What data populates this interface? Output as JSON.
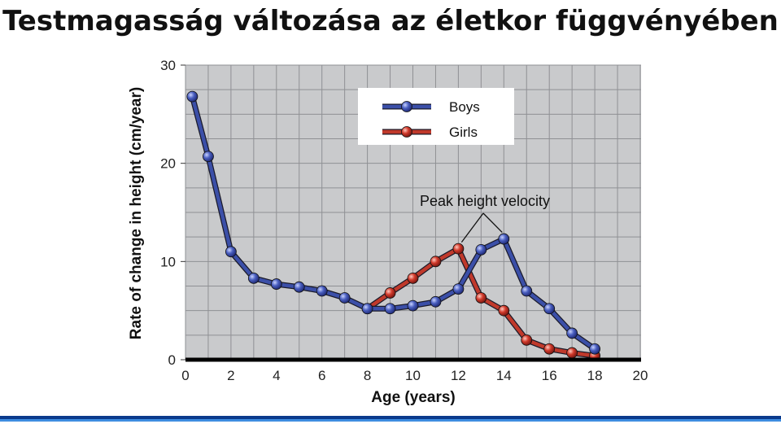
{
  "slide": {
    "title": "Testmagasság változása az életkor függvényében"
  },
  "chart_data": {
    "type": "line",
    "xlabel": "Age (years)",
    "ylabel": "Rate of change in height (cm/year)",
    "xlim": [
      0,
      20
    ],
    "ylim": [
      0,
      30
    ],
    "x_ticks": [
      "0",
      "2",
      "4",
      "6",
      "8",
      "10",
      "12",
      "14",
      "16",
      "18",
      "20"
    ],
    "y_ticks": [
      "0",
      "10",
      "20",
      "30"
    ],
    "grid": true,
    "legend_position": "top-right",
    "annotation": "Peak height velocity",
    "series": [
      {
        "name": "Boys",
        "color": "#3b4fa8",
        "x": [
          0.3,
          1,
          2,
          3,
          4,
          5,
          6,
          7,
          8,
          9,
          10,
          11,
          12,
          13,
          14,
          15,
          16,
          17,
          18
        ],
        "y": [
          26.8,
          20.7,
          11.0,
          8.3,
          7.7,
          7.4,
          7.0,
          6.3,
          5.2,
          5.2,
          5.5,
          5.9,
          7.2,
          11.2,
          12.3,
          7.0,
          5.2,
          2.7,
          1.1
        ]
      },
      {
        "name": "Girls",
        "color": "#c0392b",
        "x": [
          8,
          9,
          10,
          11,
          12,
          13,
          14,
          15,
          16,
          17,
          18
        ],
        "y": [
          5.2,
          6.8,
          8.3,
          10.0,
          11.3,
          6.3,
          5.0,
          2.0,
          1.1,
          0.7,
          0.4
        ]
      }
    ]
  }
}
